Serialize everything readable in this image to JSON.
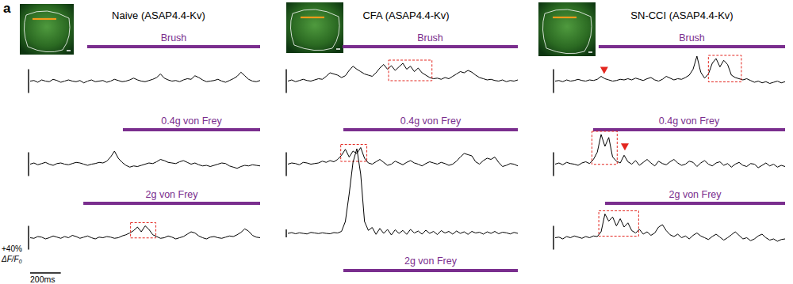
{
  "panel_label": "a",
  "panels": [
    {
      "title": "Naive (ASAP4.4-Kv)"
    },
    {
      "title": "CFA (ASAP4.4-Kv)"
    },
    {
      "title": "SN-CCI (ASAP4.4-Kv)"
    }
  ],
  "scale_bar": {
    "y_value": 40,
    "y_label": "+40%",
    "y_unit": "ΔF/F0",
    "x_value": 200,
    "x_label": "200ms"
  },
  "chart_data": [
    {
      "type": "line",
      "title": "Brush",
      "x": [
        0,
        25,
        50,
        75,
        100,
        125,
        150,
        175,
        200,
        225,
        250,
        275,
        300,
        325,
        350,
        375,
        400,
        425,
        450,
        475,
        500,
        525,
        550,
        575,
        600,
        625,
        650,
        675,
        700,
        725,
        750,
        775,
        800,
        825,
        850,
        875,
        900,
        925,
        950,
        975,
        1000,
        1025,
        1050,
        1075,
        1100,
        1125,
        1150,
        1175,
        1200,
        1225,
        1250,
        1275,
        1300,
        1325,
        1350,
        1375,
        1400,
        1425,
        1450,
        1475,
        1500
      ],
      "values": [
        0,
        1,
        -2,
        2,
        0,
        -1,
        3,
        1,
        -2,
        0,
        2,
        0,
        -1,
        1,
        -3,
        0,
        2,
        -1,
        0,
        1,
        -2,
        0,
        3,
        1,
        -1,
        0,
        2,
        5,
        2,
        0,
        -1,
        1,
        3,
        6,
        12,
        5,
        2,
        0,
        1,
        -1,
        2,
        4,
        3,
        9,
        6,
        2,
        -1,
        0,
        1,
        3,
        0,
        -2,
        1,
        4,
        8,
        15,
        9,
        3,
        0,
        -1,
        1
      ],
      "xlim": [
        0,
        1500
      ],
      "ylim": [
        -30,
        50
      ],
      "color": "#000000",
      "tick_labels": false,
      "stimulus": [
        372,
        1500
      ]
    },
    {
      "type": "line",
      "title": "0.4g von Frey",
      "x": [
        0,
        25,
        50,
        75,
        100,
        125,
        150,
        175,
        200,
        225,
        250,
        275,
        300,
        325,
        350,
        375,
        400,
        425,
        450,
        475,
        500,
        525,
        550,
        575,
        600,
        625,
        650,
        675,
        700,
        725,
        750,
        775,
        800,
        825,
        850,
        875,
        900,
        925,
        950,
        975,
        1000,
        1025,
        1050,
        1075,
        1100,
        1125,
        1150,
        1175,
        1200,
        1225,
        1250,
        1275,
        1300,
        1325,
        1350,
        1375,
        1400,
        1425,
        1450,
        1475,
        1500
      ],
      "values": [
        0,
        2,
        -1,
        1,
        3,
        0,
        -2,
        1,
        2,
        0,
        -1,
        1,
        3,
        2,
        0,
        -2,
        0,
        1,
        3,
        2,
        5,
        12,
        22,
        10,
        3,
        -2,
        -5,
        -3,
        -4,
        -2,
        0,
        2,
        1,
        4,
        8,
        6,
        3,
        2,
        1,
        4,
        6,
        3,
        0,
        2,
        -1,
        -3,
        -2,
        -4,
        -2,
        0,
        2,
        1,
        -3,
        -5,
        -7,
        -4,
        -2,
        -3,
        -1,
        -2,
        -3
      ],
      "xlim": [
        0,
        1500
      ],
      "ylim": [
        -30,
        50
      ],
      "color": "#000000",
      "tick_labels": false,
      "stimulus": [
        605,
        1500
      ]
    },
    {
      "type": "line",
      "title": "2g von Frey",
      "x": [
        0,
        25,
        50,
        75,
        100,
        125,
        150,
        175,
        200,
        225,
        250,
        275,
        300,
        325,
        350,
        375,
        400,
        425,
        450,
        475,
        500,
        525,
        550,
        575,
        600,
        625,
        650,
        675,
        700,
        725,
        750,
        775,
        800,
        825,
        850,
        875,
        900,
        925,
        950,
        975,
        1000,
        1025,
        1050,
        1075,
        1100,
        1125,
        1150,
        1175,
        1200,
        1225,
        1250,
        1275,
        1300,
        1325,
        1350,
        1375,
        1400,
        1425,
        1450,
        1475,
        1500
      ],
      "values": [
        0,
        -1,
        2,
        1,
        -2,
        0,
        3,
        1,
        -1,
        2,
        0,
        4,
        2,
        -1,
        1,
        3,
        0,
        -2,
        1,
        0,
        2,
        1,
        -1,
        0,
        3,
        5,
        8,
        12,
        18,
        10,
        20,
        14,
        5,
        2,
        -1,
        0,
        3,
        1,
        -2,
        0,
        2,
        6,
        10,
        8,
        3,
        0,
        -2,
        1,
        2,
        0,
        -1,
        1,
        3,
        2,
        5,
        9,
        15,
        11,
        4,
        1,
        0
      ],
      "xlim": [
        0,
        1500
      ],
      "ylim": [
        -30,
        50
      ],
      "color": "#000000",
      "tick_labels": false,
      "stimulus": [
        347,
        1500
      ],
      "highlights": [
        [
          655,
          820
        ]
      ]
    },
    {
      "type": "line",
      "title": "Brush",
      "x": [
        0,
        25,
        50,
        75,
        100,
        125,
        150,
        175,
        200,
        225,
        250,
        275,
        300,
        325,
        350,
        375,
        400,
        425,
        450,
        475,
        500,
        525,
        550,
        575,
        600,
        625,
        650,
        675,
        700,
        725,
        750,
        775,
        800,
        825,
        850,
        875,
        900,
        925,
        950,
        975,
        1000,
        1025,
        1050,
        1075,
        1100,
        1125,
        1150,
        1175,
        1200,
        1225,
        1250,
        1275,
        1300,
        1325,
        1350,
        1375,
        1400,
        1425,
        1450,
        1475,
        1500
      ],
      "values": [
        0,
        2,
        -1,
        1,
        3,
        1,
        0,
        2,
        4,
        3,
        8,
        14,
        12,
        10,
        6,
        9,
        18,
        25,
        20,
        16,
        12,
        10,
        8,
        14,
        22,
        28,
        20,
        26,
        18,
        24,
        30,
        20,
        25,
        16,
        22,
        14,
        10,
        6,
        4,
        5,
        3,
        6,
        4,
        8,
        12,
        16,
        14,
        18,
        15,
        10,
        6,
        4,
        2,
        3,
        1,
        0,
        2,
        -1,
        1,
        0,
        2
      ],
      "xlim": [
        0,
        1500
      ],
      "ylim": [
        -30,
        50
      ],
      "color": "#000000",
      "tick_labels": false,
      "stimulus": [
        357,
        1500
      ],
      "highlights": [
        [
          657,
          940
        ]
      ]
    },
    {
      "type": "line",
      "title": "0.4g von Frey",
      "x": [
        0,
        25,
        50,
        75,
        100,
        125,
        150,
        175,
        200,
        225,
        250,
        275,
        300,
        325,
        350,
        375,
        400,
        425,
        450,
        475,
        500,
        525,
        550,
        575,
        600,
        625,
        650,
        675,
        700,
        725,
        750,
        775,
        800,
        825,
        850,
        875,
        900,
        925,
        950,
        975,
        1000,
        1025,
        1050,
        1075,
        1100,
        1125,
        1150,
        1175,
        1200,
        1225,
        1250,
        1275,
        1300,
        1325,
        1350,
        1375,
        1400,
        1425,
        1450,
        1475,
        1500
      ],
      "values": [
        0,
        2,
        1,
        -1,
        3,
        2,
        0,
        1,
        2,
        5,
        3,
        6,
        4,
        8,
        15,
        25,
        12,
        22,
        18,
        28,
        10,
        2,
        0,
        4,
        8,
        3,
        -2,
        0,
        5,
        2,
        -1,
        3,
        6,
        2,
        0,
        -3,
        1,
        4,
        2,
        0,
        3,
        1,
        -2,
        0,
        5,
        12,
        18,
        16,
        14,
        4,
        0,
        6,
        10,
        8,
        12,
        3,
        -4,
        -2,
        1,
        0,
        -3
      ],
      "xlim": [
        0,
        1500
      ],
      "ylim": [
        -30,
        50
      ],
      "color": "#000000",
      "tick_labels": false,
      "stimulus": [
        362,
        1500
      ],
      "highlights": [
        [
          345,
          515
        ]
      ]
    },
    {
      "type": "line",
      "title": "2g von Frey",
      "x": [
        0,
        25,
        50,
        75,
        100,
        125,
        150,
        175,
        200,
        225,
        250,
        275,
        300,
        325,
        350,
        375,
        400,
        425,
        450,
        475,
        500,
        525,
        550,
        575,
        600,
        625,
        650,
        675,
        700,
        725,
        750,
        775,
        800,
        825,
        850,
        875,
        900,
        925,
        950,
        975,
        1000,
        1025,
        1050,
        1075,
        1100,
        1125,
        1150,
        1175,
        1200,
        1225,
        1250,
        1275,
        1300,
        1325,
        1350,
        1375,
        1400,
        1425,
        1450,
        1475,
        1500
      ],
      "values": [
        0,
        4,
        -2,
        3,
        0,
        -3,
        5,
        2,
        -1,
        3,
        0,
        -2,
        4,
        2,
        10,
        60,
        200,
        360,
        428,
        300,
        60,
        15,
        30,
        -5,
        25,
        0,
        20,
        -8,
        18,
        0,
        15,
        -5,
        20,
        2,
        12,
        -4,
        16,
        0,
        10,
        -6,
        14,
        2,
        10,
        -4,
        12,
        0,
        8,
        -5,
        10,
        2,
        6,
        -4,
        8,
        0,
        10,
        -2,
        6,
        3,
        -3,
        5,
        0
      ],
      "xlim": [
        0,
        1500
      ],
      "ylim": [
        -60,
        440
      ],
      "color": "#000000",
      "tick_labels": false,
      "stimulus": [
        362,
        1500
      ]
    },
    {
      "type": "line",
      "title": "Brush",
      "x": [
        0,
        25,
        50,
        75,
        100,
        125,
        150,
        175,
        200,
        225,
        250,
        275,
        300,
        325,
        350,
        375,
        400,
        425,
        450,
        475,
        500,
        525,
        550,
        575,
        600,
        625,
        650,
        675,
        700,
        725,
        750,
        775,
        800,
        825,
        850,
        875,
        900,
        925,
        950,
        975,
        1000,
        1025,
        1050,
        1075,
        1100,
        1125,
        1150,
        1175,
        1200,
        1225,
        1250,
        1275,
        1300,
        1325,
        1350,
        1375,
        1400,
        1425,
        1450,
        1475,
        1500
      ],
      "values": [
        0,
        1,
        -1,
        2,
        0,
        1,
        3,
        1,
        0,
        2,
        1,
        3,
        8,
        4,
        2,
        0,
        1,
        3,
        2,
        4,
        2,
        5,
        3,
        1,
        4,
        6,
        2,
        0,
        3,
        8,
        5,
        2,
        4,
        3,
        6,
        10,
        20,
        42,
        15,
        5,
        12,
        30,
        38,
        24,
        35,
        28,
        10,
        6,
        4,
        2,
        4,
        1,
        -2,
        0,
        -3,
        -1,
        -4,
        -2,
        0,
        -3,
        -1
      ],
      "xlim": [
        0,
        1500
      ],
      "ylim": [
        -30,
        50
      ],
      "color": "#000000",
      "tick_labels": false,
      "stimulus": [
        284,
        1500
      ],
      "highlights": [
        [
          1000,
          1215
        ]
      ],
      "arrowheads": [
        320
      ]
    },
    {
      "type": "line",
      "title": "0.4g von Frey",
      "x": [
        0,
        25,
        50,
        75,
        100,
        125,
        150,
        175,
        200,
        225,
        250,
        275,
        300,
        325,
        350,
        375,
        400,
        425,
        450,
        475,
        500,
        525,
        550,
        575,
        600,
        625,
        650,
        675,
        700,
        725,
        750,
        775,
        800,
        825,
        850,
        875,
        900,
        925,
        950,
        975,
        1000,
        1025,
        1050,
        1075,
        1100,
        1125,
        1150,
        1175,
        1200,
        1225,
        1250,
        1275,
        1300,
        1325,
        1350,
        1375,
        1400,
        1425,
        1450,
        1475,
        1500
      ],
      "values": [
        0,
        2,
        -1,
        3,
        1,
        0,
        -2,
        2,
        4,
        1,
        8,
        20,
        50,
        30,
        45,
        12,
        5,
        2,
        15,
        4,
        0,
        6,
        -2,
        3,
        8,
        2,
        -3,
        5,
        1,
        -1,
        4,
        8,
        2,
        -2,
        0,
        5,
        3,
        -4,
        2,
        6,
        0,
        -3,
        2,
        4,
        -2,
        1,
        -5,
        0,
        3,
        -2,
        -4,
        1,
        0,
        -6,
        -2,
        2,
        -3,
        0,
        -5,
        -2,
        -4
      ],
      "xlim": [
        0,
        1500
      ],
      "ylim": [
        -30,
        50
      ],
      "color": "#000000",
      "tick_labels": false,
      "stimulus": [
        248,
        1500
      ],
      "highlights": [
        [
          240,
          405
        ]
      ],
      "arrowheads": [
        455
      ]
    },
    {
      "type": "line",
      "title": "2g von Frey",
      "x": [
        0,
        25,
        50,
        75,
        100,
        125,
        150,
        175,
        200,
        225,
        250,
        275,
        300,
        325,
        350,
        375,
        400,
        425,
        450,
        475,
        500,
        525,
        550,
        575,
        600,
        625,
        650,
        675,
        700,
        725,
        750,
        775,
        800,
        825,
        850,
        875,
        900,
        925,
        950,
        975,
        1000,
        1025,
        1050,
        1075,
        1100,
        1125,
        1150,
        1175,
        1200,
        1225,
        1250,
        1275,
        1300,
        1325,
        1350,
        1375,
        1400,
        1425,
        1450,
        1475,
        1500
      ],
      "values": [
        0,
        1,
        -2,
        2,
        0,
        3,
        1,
        -1,
        2,
        0,
        3,
        2,
        10,
        40,
        28,
        35,
        20,
        32,
        18,
        25,
        12,
        8,
        14,
        6,
        10,
        4,
        8,
        18,
        22,
        12,
        5,
        2,
        6,
        0,
        3,
        -2,
        4,
        8,
        3,
        0,
        -3,
        2,
        6,
        1,
        -4,
        0,
        5,
        10,
        4,
        -2,
        0,
        -5,
        -2,
        3,
        6,
        0,
        -4,
        -2,
        -6,
        -3,
        -2
      ],
      "xlim": [
        0,
        1500
      ],
      "ylim": [
        -30,
        50
      ],
      "color": "#000000",
      "tick_labels": false,
      "stimulus": [
        326,
        1500
      ],
      "highlights": [
        [
          285,
          545
        ]
      ]
    }
  ]
}
